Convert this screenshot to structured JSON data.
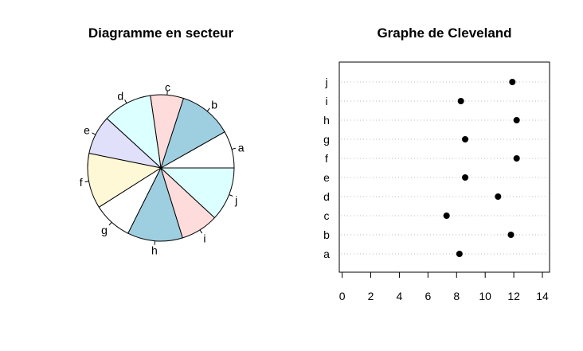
{
  "chart_data": [
    {
      "type": "pie",
      "title": "Diagramme en secteur",
      "direction": "counterclockwise",
      "start": "right (3 o'clock)",
      "categories": [
        "a",
        "b",
        "c",
        "d",
        "e",
        "f",
        "g",
        "h",
        "i",
        "j"
      ],
      "values": [
        8.2,
        11.8,
        7.3,
        10.9,
        8.6,
        12.2,
        8.6,
        12.2,
        8.3,
        11.9
      ],
      "colors": [
        "#ffffff",
        "#9ecfe0",
        "#ffdcdc",
        "#dcffff",
        "#e0e0fa",
        "#fff8d6",
        "#ffffff",
        "#9ecfe0",
        "#ffdcdc",
        "#dcffff"
      ]
    },
    {
      "type": "scatter",
      "subtype": "dotchart",
      "title": "Graphe de Cleveland",
      "categories": [
        "a",
        "b",
        "c",
        "d",
        "e",
        "f",
        "g",
        "h",
        "i",
        "j"
      ],
      "values": [
        8.2,
        11.8,
        7.3,
        10.9,
        8.6,
        12.2,
        8.6,
        12.2,
        8.3,
        11.9
      ],
      "xticks": [
        "0",
        "2",
        "4",
        "6",
        "8",
        "10",
        "12",
        "14"
      ],
      "xlim": [
        -0.2,
        14.5
      ],
      "grid": "dotted horizontal lines"
    }
  ]
}
